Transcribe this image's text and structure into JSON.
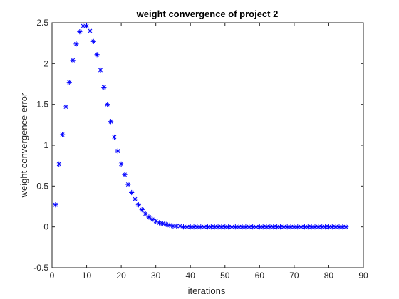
{
  "chart_data": {
    "type": "scatter",
    "title": "weight convergence of project 2",
    "xlabel": "iterations",
    "ylabel": "weight convergence error",
    "xlim": [
      0,
      90
    ],
    "ylim": [
      -0.5,
      2.5
    ],
    "xticks": [
      "0",
      "10",
      "20",
      "30",
      "40",
      "50",
      "60",
      "70",
      "80",
      "90"
    ],
    "yticks": [
      "-0.5",
      "0",
      "0.5",
      "1",
      "1.5",
      "2",
      "2.5"
    ],
    "grid": false,
    "marker": "asterisk",
    "marker_color": "#0000ff",
    "series": [
      {
        "x": [
          1,
          2,
          3,
          4,
          5,
          6,
          7,
          8,
          9,
          10,
          11,
          12,
          13,
          14,
          15,
          16,
          17,
          18,
          19,
          20,
          21,
          22,
          23,
          24,
          25,
          26,
          27,
          28,
          29,
          30,
          31,
          32,
          33,
          34,
          35,
          36,
          37,
          38,
          39,
          40,
          41,
          42,
          43,
          44,
          45,
          46,
          47,
          48,
          49,
          50,
          51,
          52,
          53,
          54,
          55,
          56,
          57,
          58,
          59,
          60,
          61,
          62,
          63,
          64,
          65,
          66,
          67,
          68,
          69,
          70,
          71,
          72,
          73,
          74,
          75,
          76,
          77,
          78,
          79,
          80,
          81,
          82,
          83,
          84,
          85
        ],
        "values": [
          0.27,
          0.77,
          1.13,
          1.47,
          1.77,
          2.04,
          2.24,
          2.39,
          2.46,
          2.46,
          2.4,
          2.27,
          2.11,
          1.92,
          1.71,
          1.5,
          1.29,
          1.1,
          0.93,
          0.77,
          0.64,
          0.52,
          0.42,
          0.34,
          0.27,
          0.21,
          0.16,
          0.12,
          0.09,
          0.07,
          0.05,
          0.04,
          0.03,
          0.02,
          0.01,
          0.01,
          0.01,
          0.0,
          0.0,
          0.0,
          0.0,
          0.0,
          0.0,
          0.0,
          0.0,
          0.0,
          0.0,
          0.0,
          0.0,
          0.0,
          0.0,
          0.0,
          0.0,
          0.0,
          0.0,
          0.0,
          0.0,
          0.0,
          0.0,
          0.0,
          0.0,
          0.0,
          0.0,
          0.0,
          0.0,
          0.0,
          0.0,
          0.0,
          0.0,
          0.0,
          0.0,
          0.0,
          0.0,
          0.0,
          0.0,
          0.0,
          0.0,
          0.0,
          0.0,
          0.0,
          0.0,
          0.0,
          0.0,
          0.0,
          0.0
        ]
      }
    ]
  }
}
